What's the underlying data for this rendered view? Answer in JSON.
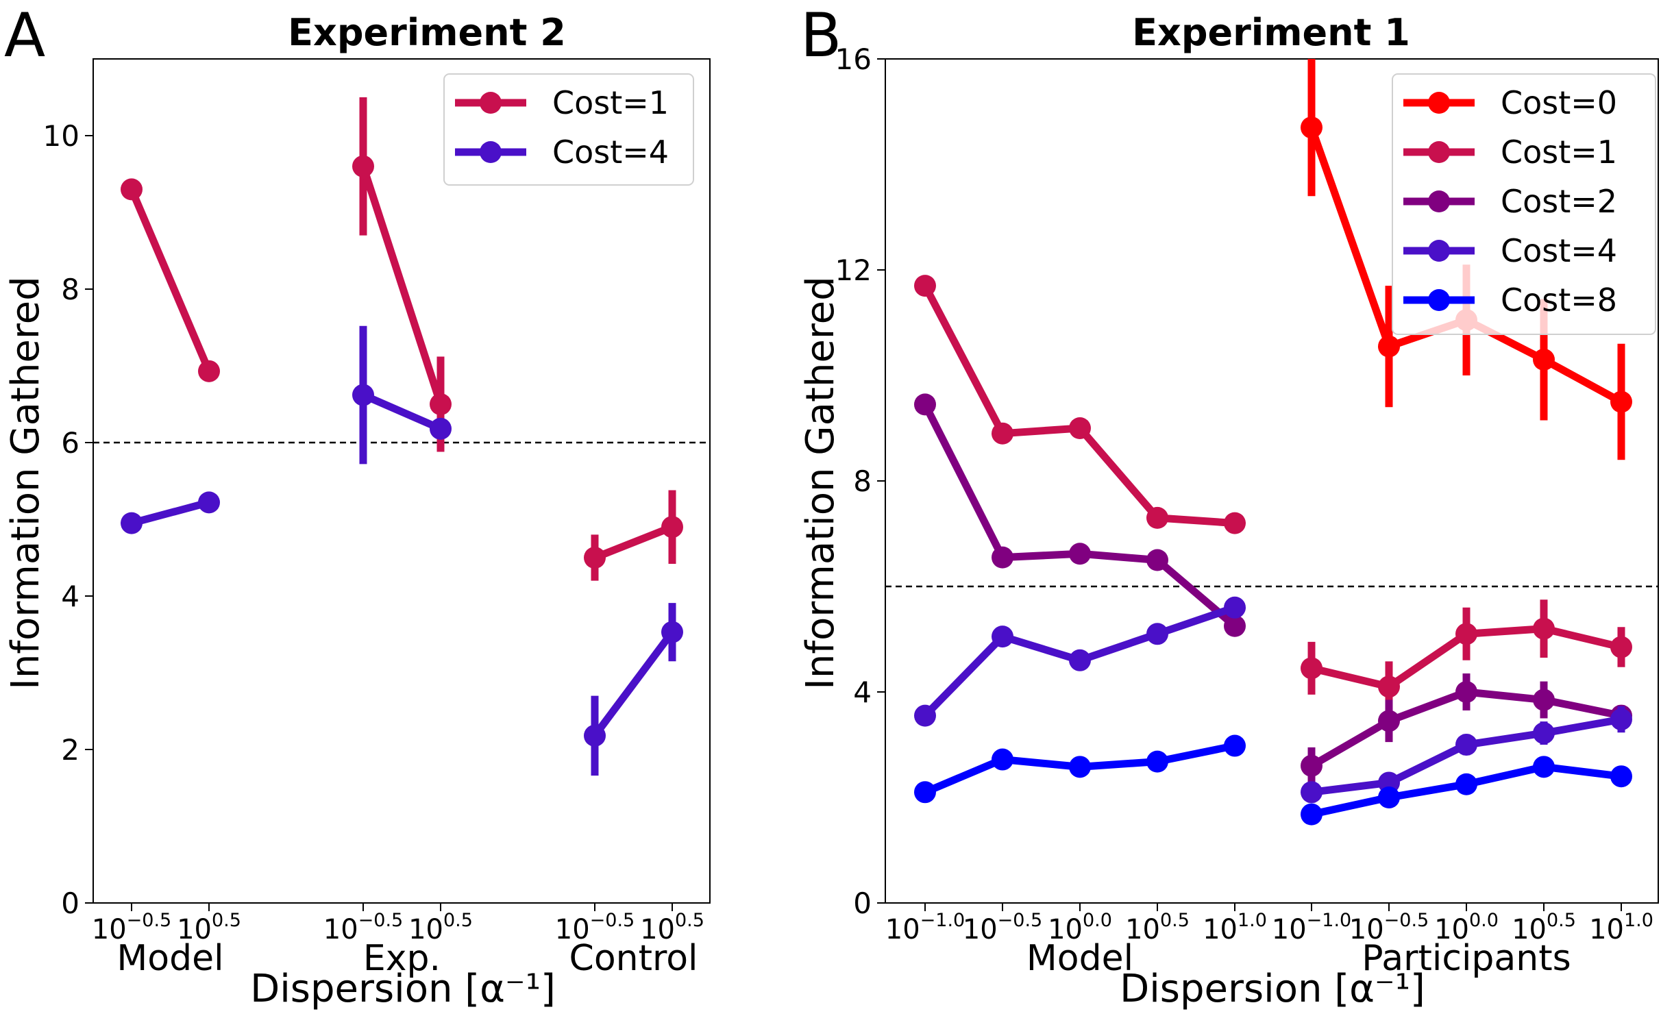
{
  "chart_data": [
    {
      "panel": "A",
      "title": "Experiment 2",
      "type": "line",
      "ylabel": "Information Gathered",
      "xlabel": "Dispersion [α⁻¹]",
      "ylim": [
        0,
        11
      ],
      "yticks": [
        0,
        2,
        4,
        6,
        8,
        10
      ],
      "reference_line": 6,
      "groups": [
        {
          "label": "Model",
          "ticks": [
            {
              "base": "10",
              "exp": "−0.5"
            },
            {
              "base": "10",
              "exp": "0.5"
            }
          ]
        },
        {
          "label": "Exp.",
          "ticks": [
            {
              "base": "10",
              "exp": "−0.5"
            },
            {
              "base": "10",
              "exp": "0.5"
            }
          ]
        },
        {
          "label": "Control",
          "ticks": [
            {
              "base": "10",
              "exp": "−0.5"
            },
            {
              "base": "10",
              "exp": "0.5"
            }
          ]
        }
      ],
      "legend": {
        "position": "top-right"
      },
      "series": [
        {
          "name": "Cost=1",
          "color": "#c8104e",
          "segments": [
            {
              "group": 0,
              "values": [
                9.3,
                6.93
              ],
              "errors": [
                0,
                0
              ]
            },
            {
              "group": 1,
              "values": [
                9.6,
                6.5
              ],
              "errors": [
                0.9,
                0.62
              ]
            },
            {
              "group": 2,
              "values": [
                4.5,
                4.9
              ],
              "errors": [
                0.3,
                0.48
              ]
            }
          ]
        },
        {
          "name": "Cost=4",
          "color": "#4a10c8",
          "segments": [
            {
              "group": 0,
              "values": [
                4.95,
                5.22
              ],
              "errors": [
                0,
                0
              ]
            },
            {
              "group": 1,
              "values": [
                6.62,
                6.18
              ],
              "errors": [
                0.9,
                0
              ]
            },
            {
              "group": 2,
              "values": [
                2.18,
                3.53
              ],
              "errors": [
                0.52,
                0.38
              ]
            }
          ]
        }
      ]
    },
    {
      "panel": "B",
      "title": "Experiment 1",
      "type": "line",
      "ylabel": "Information Gathered",
      "xlabel": "Dispersion [α⁻¹]",
      "ylim": [
        0,
        16
      ],
      "yticks": [
        0,
        4,
        8,
        12,
        16
      ],
      "reference_line": 6,
      "groups": [
        {
          "label": "Model",
          "ticks": [
            {
              "base": "10",
              "exp": "−1.0"
            },
            {
              "base": "10",
              "exp": "−0.5"
            },
            {
              "base": "10",
              "exp": "0.0"
            },
            {
              "base": "10",
              "exp": "0.5"
            },
            {
              "base": "10",
              "exp": "1.0"
            }
          ]
        },
        {
          "label": "Participants",
          "ticks": [
            {
              "base": "10",
              "exp": "−1.0"
            },
            {
              "base": "10",
              "exp": "−0.5"
            },
            {
              "base": "10",
              "exp": "0.0"
            },
            {
              "base": "10",
              "exp": "0.5"
            },
            {
              "base": "10",
              "exp": "1.0"
            }
          ]
        }
      ],
      "legend": {
        "position": "top-right"
      },
      "series": [
        {
          "name": "Cost=0",
          "color": "#ff0000",
          "segments": [
            {
              "group": 1,
              "values": [
                14.7,
                10.55,
                11.05,
                10.3,
                9.5
              ],
              "errors": [
                1.3,
                1.15,
                1.05,
                1.15,
                1.1
              ]
            }
          ]
        },
        {
          "name": "Cost=1",
          "color": "#c8104e",
          "segments": [
            {
              "group": 0,
              "values": [
                11.7,
                8.9,
                9.0,
                7.3,
                7.2
              ],
              "errors": [
                0,
                0,
                0,
                0,
                0
              ]
            },
            {
              "group": 1,
              "values": [
                4.45,
                4.1,
                5.1,
                5.2,
                4.85
              ],
              "errors": [
                0.5,
                0.48,
                0.5,
                0.55,
                0.38
              ]
            }
          ]
        },
        {
          "name": "Cost=2",
          "color": "#800080",
          "segments": [
            {
              "group": 0,
              "values": [
                9.45,
                6.55,
                6.62,
                6.5,
                5.25
              ],
              "errors": [
                0,
                0,
                0,
                0,
                0
              ]
            },
            {
              "group": 1,
              "values": [
                2.6,
                3.45,
                4.0,
                3.85,
                3.55
              ],
              "errors": [
                0.35,
                0.4,
                0.35,
                0.35,
                0.2
              ]
            }
          ]
        },
        {
          "name": "Cost=4",
          "color": "#4a10c8",
          "segments": [
            {
              "group": 0,
              "values": [
                3.55,
                5.05,
                4.6,
                5.1,
                5.6
              ],
              "errors": [
                0,
                0,
                0,
                0,
                0
              ]
            },
            {
              "group": 1,
              "values": [
                2.1,
                2.28,
                3.0,
                3.22,
                3.48
              ],
              "errors": [
                0.2,
                0.15,
                0.2,
                0.22,
                0.25
              ]
            }
          ]
        },
        {
          "name": "Cost=8",
          "color": "#0000ff",
          "segments": [
            {
              "group": 0,
              "values": [
                2.1,
                2.72,
                2.58,
                2.68,
                2.98
              ],
              "errors": [
                0,
                0,
                0,
                0,
                0
              ]
            },
            {
              "group": 1,
              "values": [
                1.68,
                2.0,
                2.25,
                2.58,
                2.4
              ],
              "errors": [
                0.15,
                0.12,
                0.12,
                0.15,
                0.12
              ]
            }
          ]
        }
      ]
    }
  ]
}
